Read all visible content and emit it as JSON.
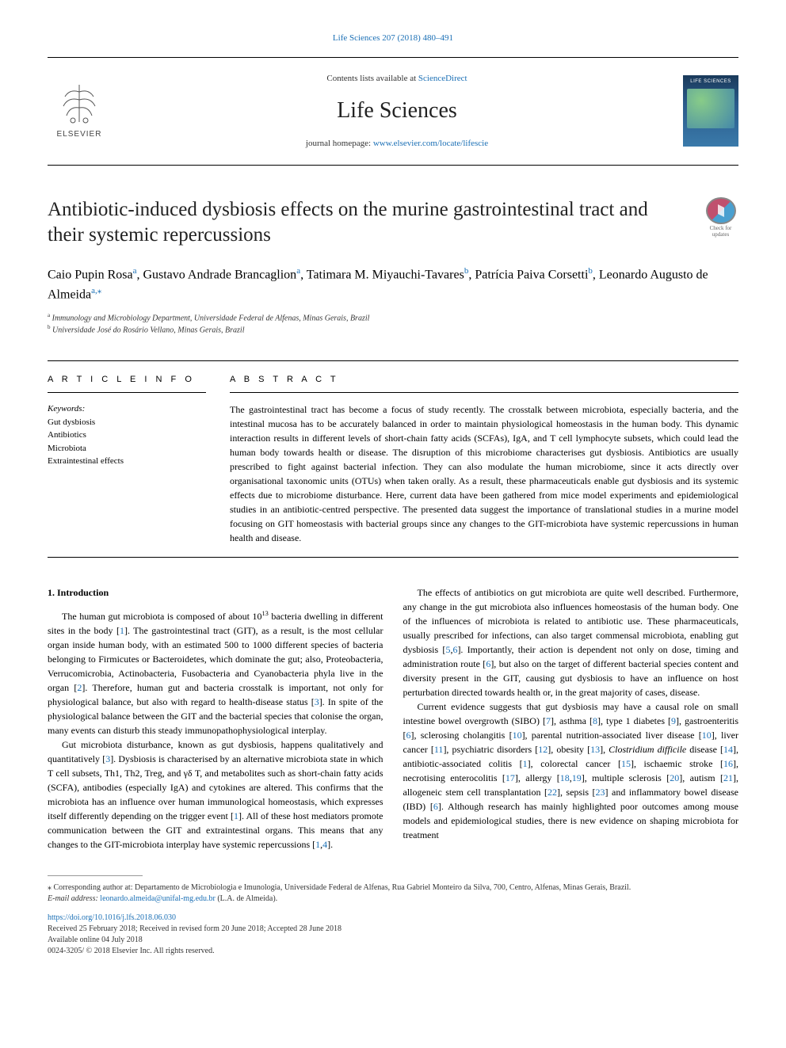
{
  "colors": {
    "link": "#1a6fb5",
    "text": "#000000",
    "bg": "#ffffff",
    "border": "#000000",
    "cover_gradient_top": "#1a3a5a",
    "cover_gradient_bottom": "#3a7aaa"
  },
  "typography": {
    "body_fontsize": 12,
    "title_fontsize": 25,
    "journal_fontsize": 28,
    "authors_fontsize": 16,
    "affil_fontsize": 10,
    "footer_fontsize": 10
  },
  "top_link": "Life Sciences 207 (2018) 480–491",
  "header": {
    "contents_prefix": "Contents lists available at ",
    "contents_link": "ScienceDirect",
    "journal_name": "Life Sciences",
    "homepage_prefix": "journal homepage: ",
    "homepage_link": "www.elsevier.com/locate/lifescie",
    "publisher": "ELSEVIER",
    "cover_title": "LIFE SCIENCES"
  },
  "check_updates": {
    "line1": "Check for",
    "line2": "updates"
  },
  "article": {
    "title": "Antibiotic-induced dysbiosis effects on the murine gastrointestinal tract and their systemic repercussions",
    "authors_html": "Caio Pupin Rosa<sup><a>a</a></sup>, Gustavo Andrade Brancaglion<sup><a>a</a></sup>, Tatimara M. Miyauchi-Tavares<sup><a>b</a></sup>, Patrícia Paiva Corsetti<sup><a>b</a></sup>, Leonardo Augusto de Almeida<sup><a>a,</a></sup><sup><a>⁎</a></sup>",
    "affiliations": [
      {
        "sup": "a",
        "text": "Immunology and Microbiology Department, Universidade Federal de Alfenas, Minas Gerais, Brazil"
      },
      {
        "sup": "b",
        "text": "Universidade José do Rosário Vellano, Minas Gerais, Brazil"
      }
    ]
  },
  "info": {
    "heading": "A R T I C L E  I N F O",
    "keywords_label": "Keywords:",
    "keywords": [
      "Gut dysbiosis",
      "Antibiotics",
      "Microbiota",
      "Extraintestinal effects"
    ]
  },
  "abstract": {
    "heading": "A B S T R A C T",
    "text": "The gastrointestinal tract has become a focus of study recently. The crosstalk between microbiota, especially bacteria, and the intestinal mucosa has to be accurately balanced in order to maintain physiological homeostasis in the human body. This dynamic interaction results in different levels of short-chain fatty acids (SCFAs), IgA, and T cell lymphocyte subsets, which could lead the human body towards health or disease. The disruption of this microbiome characterises gut dysbiosis. Antibiotics are usually prescribed to fight against bacterial infection. They can also modulate the human microbiome, since it acts directly over organisational taxonomic units (OTUs) when taken orally. As a result, these pharmaceuticals enable gut dysbiosis and its systemic effects due to microbiome disturbance. Here, current data have been gathered from mice model experiments and epidemiological studies in an antibiotic-centred perspective. The presented data suggest the importance of translational studies in a murine model focusing on GIT homeostasis with bacterial groups since any changes to the GIT-microbiota have systemic repercussions in human health and disease."
  },
  "section1": {
    "heading": "1. Introduction",
    "p1_html": "The human gut microbiota is composed of about 10<sup>13</sup> bacteria dwelling in different sites in the body [<a class='ref-link'>1</a>]. The gastrointestinal tract (GIT), as a result, is the most cellular organ inside human body, with an estimated 500 to 1000 different species of bacteria belonging to Firmicutes or Bacteroidetes, which dominate the gut; also, Proteobacteria, Verrucomicrobia, Actinobacteria, Fusobacteria and Cyanobacteria phyla live in the organ [<a class='ref-link'>2</a>]. Therefore, human gut and bacteria crosstalk is important, not only for physiological balance, but also with regard to health-disease status [<a class='ref-link'>3</a>]. In spite of the physiological balance between the GIT and the bacterial species that colonise the organ, many events can disturb this steady immunopathophysiological interplay.",
    "p2_html": "Gut microbiota disturbance, known as gut dysbiosis, happens qualitatively and quantitatively [<a class='ref-link'>3</a>]. Dysbiosis is characterised by an alternative microbiota state in which T cell subsets, Th1, Th2, Treg, and γδ T, and metabolites such as short-chain fatty acids (SCFA), antibodies (especially IgA) and cytokines are altered. This confirms that the microbiota has an influence over human immunological homeostasis, which expresses itself differently depending on the trigger event [<a class='ref-link'>1</a>]. All of these host mediators promote communication between the GIT and extraintestinal organs. This means that any changes to the GIT-microbiota interplay have systemic repercussions [<a class='ref-link'>1</a>,<a class='ref-link'>4</a>].",
    "p3_html": "The effects of antibiotics on gut microbiota are quite well described. Furthermore, any change in the gut microbiota also influences homeostasis of the human body. One of the influences of microbiota is related to antibiotic use. These pharmaceuticals, usually prescribed for infections, can also target commensal microbiota, enabling gut dysbiosis [<a class='ref-link'>5</a>,<a class='ref-link'>6</a>]. Importantly, their action is dependent not only on dose, timing and administration route [<a class='ref-link'>6</a>], but also on the target of different bacterial species content and diversity present in the GIT, causing gut dysbiosis to have an influence on host perturbation directed towards health or, in the great majority of cases, disease.",
    "p4_html": "Current evidence suggests that gut dysbiosis may have a causal role on small intestine bowel overgrowth (SIBO) [<a class='ref-link'>7</a>], asthma [<a class='ref-link'>8</a>], type 1 diabetes [<a class='ref-link'>9</a>], gastroenteritis [<a class='ref-link'>6</a>], sclerosing cholangitis [<a class='ref-link'>10</a>], parental nutrition-associated liver disease [<a class='ref-link'>10</a>], liver cancer [<a class='ref-link'>11</a>], psychiatric disorders [<a class='ref-link'>12</a>], obesity [<a class='ref-link'>13</a>], <i>Clostridium difficile</i> disease [<a class='ref-link'>14</a>], antibiotic-associated colitis [<a class='ref-link'>1</a>], colorectal cancer [<a class='ref-link'>15</a>], ischaemic stroke [<a class='ref-link'>16</a>], necrotising enterocolitis [<a class='ref-link'>17</a>], allergy [<a class='ref-link'>18</a>,<a class='ref-link'>19</a>], multiple sclerosis [<a class='ref-link'>20</a>], autism [<a class='ref-link'>21</a>], allogeneic stem cell transplantation [<a class='ref-link'>22</a>], sepsis [<a class='ref-link'>23</a>] and inflammatory bowel disease (IBD) [<a class='ref-link'>6</a>]. Although research has mainly highlighted poor outcomes among mouse models and epidemiological studies, there is new evidence on shaping microbiota for treatment"
  },
  "footer": {
    "corr": "⁎ Corresponding author at: Departamento de Microbiologia e Imunologia, Universidade Federal de Alfenas, Rua Gabriel Monteiro da Silva, 700, Centro, Alfenas, Minas Gerais, Brazil.",
    "email_label": "E-mail address: ",
    "email": "leonardo.almeida@unifal-mg.edu.br",
    "email_suffix": " (L.A. de Almeida).",
    "doi": "https://doi.org/10.1016/j.lfs.2018.06.030",
    "received": "Received 25 February 2018; Received in revised form 20 June 2018; Accepted 28 June 2018",
    "online": "Available online 04 July 2018",
    "copyright": "0024-3205/ © 2018 Elsevier Inc. All rights reserved."
  }
}
